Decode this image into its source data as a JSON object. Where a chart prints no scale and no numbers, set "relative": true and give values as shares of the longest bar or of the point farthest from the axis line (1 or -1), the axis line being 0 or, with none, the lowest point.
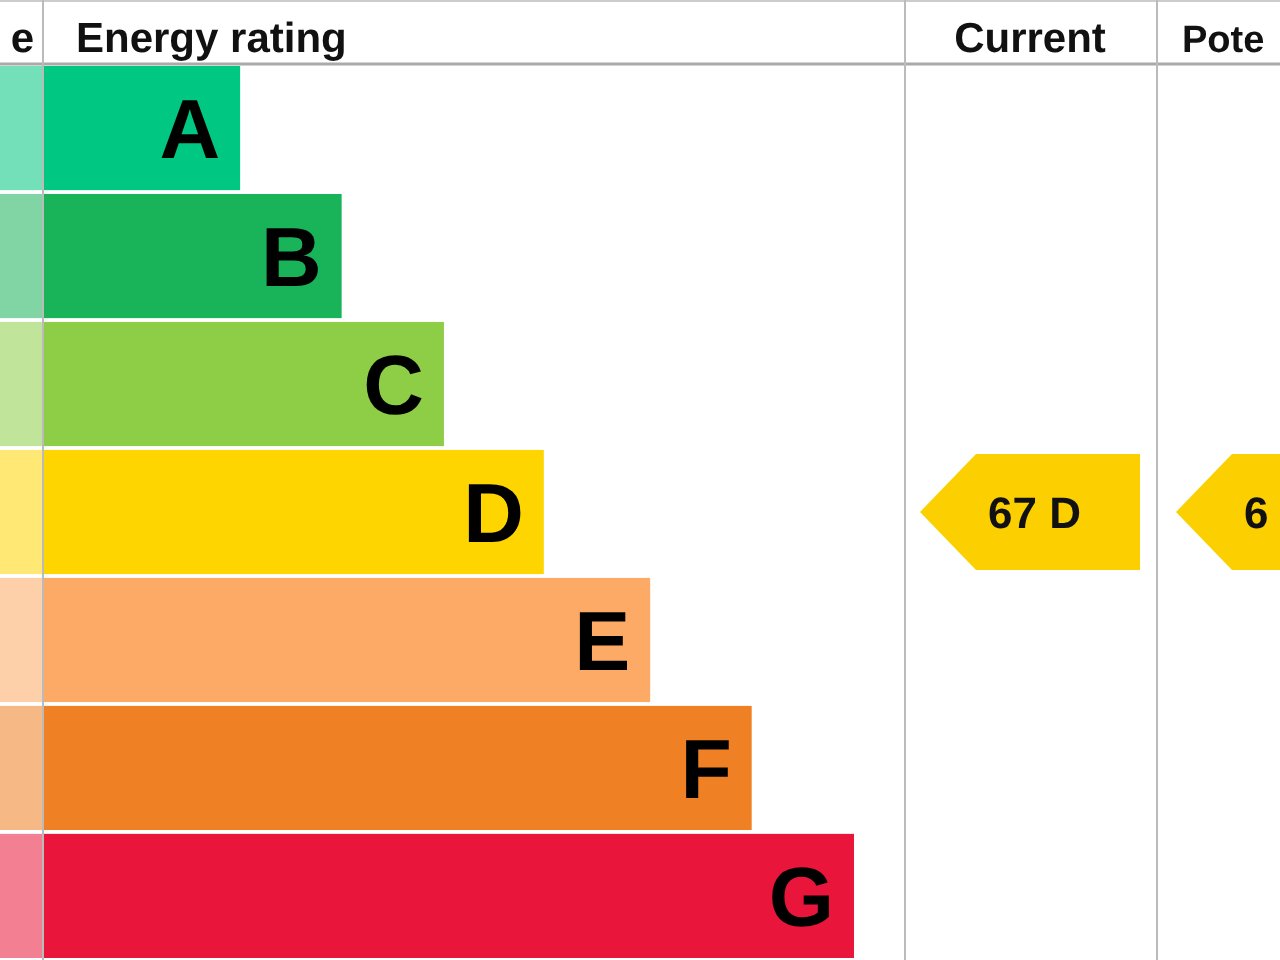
{
  "chart_data": {
    "type": "bar",
    "orientation": "horizontal",
    "relative": true,
    "title": "Energy rating",
    "categories": [
      "A",
      "B",
      "C",
      "D",
      "E",
      "F",
      "G"
    ],
    "values": [
      0.244,
      0.369,
      0.495,
      0.618,
      0.749,
      0.874,
      1
    ],
    "colors": [
      "#00c781",
      "#19b35a",
      "#8dce46",
      "#ffd500",
      "#fcaa65",
      "#ef8023",
      "#e9153b"
    ],
    "annotations": [
      "67 D",
      "6",
      "Current",
      "Pote",
      "e"
    ]
  }
}
